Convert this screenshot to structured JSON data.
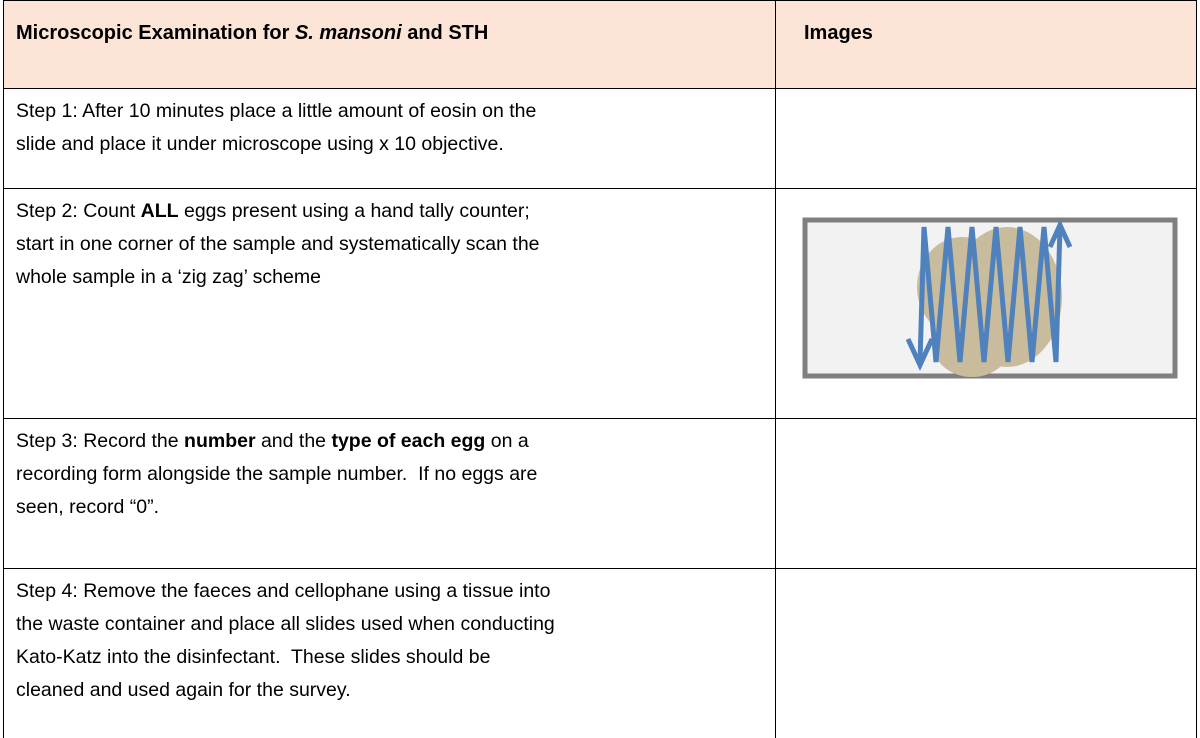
{
  "header": {
    "title": [
      {
        "text": "Microscopic Examination for "
      },
      {
        "text": "S. mansoni",
        "italic": true
      },
      {
        "text": " and STH"
      }
    ],
    "images": "Images"
  },
  "rows": [
    {
      "lines": [
        [
          {
            "text": "Step 1: After 10 minutes place a little amount of eosin on the"
          }
        ],
        [
          {
            "text": "slide and place it under microscope using x 10 objective."
          }
        ]
      ]
    },
    {
      "lines": [
        [
          {
            "text": "Step 2: Count "
          },
          {
            "text": "ALL",
            "bold": true
          },
          {
            "text": " eggs present using a hand tally counter;"
          }
        ],
        [
          {
            "text": "start in one corner of the sample and systematically scan the"
          }
        ],
        [
          {
            "text": "whole sample in a ‘zig zag’ scheme"
          }
        ]
      ]
    },
    {
      "lines": [
        [
          {
            "text": "Step 3: Record the "
          },
          {
            "text": "number",
            "bold": true
          },
          {
            "text": " and the "
          },
          {
            "text": "type of each egg",
            "bold": true
          },
          {
            "text": " on a"
          }
        ],
        [
          {
            "text": "recording form alongside the sample number.  If no eggs are"
          }
        ],
        [
          {
            "text": "seen, record “0”."
          }
        ]
      ]
    },
    {
      "lines": [
        [
          {
            "text": "Step 4: Remove the faeces and cellophane using a tissue into"
          }
        ],
        [
          {
            "text": "the waste container and place all slides used when conducting"
          }
        ],
        [
          {
            "text": "Kato-Katz into the disinfectant.  These slides should be"
          }
        ],
        [
          {
            "text": "cleaned and used again for the survey."
          }
        ]
      ]
    }
  ]
}
